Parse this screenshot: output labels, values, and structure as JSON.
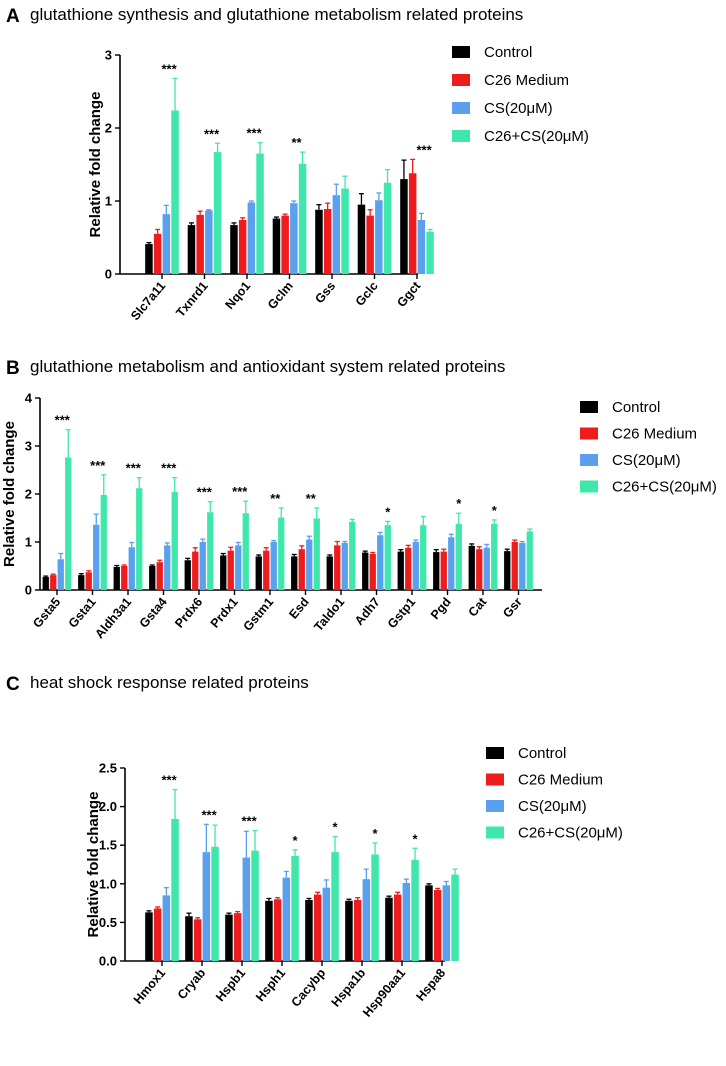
{
  "series_colors": [
    "#000000",
    "#ee1c1c",
    "#5aa0ee",
    "#3fe8aa"
  ],
  "chart_data": [
    {
      "type": "bar",
      "panel": "A",
      "title": "glutathione synthesis and glutathione metabolism related proteins",
      "ylabel": "Relative fold change",
      "xlabel": "",
      "ylim": [
        0,
        3
      ],
      "yticks": [
        "0",
        "1",
        "2",
        "3"
      ],
      "ytick_values": [
        0,
        1,
        2,
        3
      ],
      "categories": [
        "Slc7a11",
        "Txnrd1",
        "Nqo1",
        "Gclm",
        "Gss",
        "Gclc",
        "Ggct"
      ],
      "significance": [
        "***",
        "***",
        "***",
        "**",
        "",
        "",
        "***"
      ],
      "series": [
        {
          "name": "Control",
          "values": [
            0.41,
            0.67,
            0.67,
            0.76,
            0.88,
            0.95,
            1.3
          ],
          "errors": [
            0.02,
            0.03,
            0.03,
            0.02,
            0.07,
            0.15,
            0.26
          ]
        },
        {
          "name": "C26 Medium",
          "values": [
            0.55,
            0.81,
            0.74,
            0.8,
            0.89,
            0.8,
            1.38
          ],
          "errors": [
            0.06,
            0.05,
            0.03,
            0.02,
            0.08,
            0.08,
            0.19
          ]
        },
        {
          "name": "CS(20μM)",
          "values": [
            0.82,
            0.87,
            0.98,
            0.97,
            1.08,
            1.01,
            0.74
          ],
          "errors": [
            0.12,
            0.01,
            0.02,
            0.03,
            0.15,
            0.1,
            0.09
          ]
        },
        {
          "name": "C26+CS(20μM)",
          "values": [
            2.24,
            1.67,
            1.65,
            1.51,
            1.17,
            1.25,
            0.58
          ],
          "errors": [
            0.44,
            0.12,
            0.15,
            0.16,
            0.17,
            0.18,
            0.03
          ]
        }
      ]
    },
    {
      "type": "bar",
      "panel": "B",
      "title": "glutathione metabolism and antioxidant system related proteins",
      "ylabel": "Relative fold change",
      "xlabel": "",
      "ylim": [
        0,
        4
      ],
      "yticks": [
        "0",
        "1",
        "2",
        "3",
        "4"
      ],
      "ytick_values": [
        0,
        1,
        2,
        3,
        4
      ],
      "categories": [
        "Gsta5",
        "Gsta1",
        "Aldh3a1",
        "Gsta4",
        "Prdx6",
        "Prdx1",
        "Gstm1",
        "Esd",
        "Taldo1",
        "Adh7",
        "Gstp1",
        "Pgd",
        "Cat",
        "Gsr"
      ],
      "significance": [
        "***",
        "***",
        "***",
        "***",
        "***",
        "***",
        "**",
        "**",
        "",
        "*",
        "",
        "*",
        "*",
        ""
      ],
      "series": [
        {
          "name": "Control",
          "values": [
            0.27,
            0.31,
            0.48,
            0.5,
            0.62,
            0.72,
            0.7,
            0.7,
            0.7,
            0.78,
            0.8,
            0.79,
            0.92,
            0.81
          ],
          "errors": [
            0.02,
            0.03,
            0.03,
            0.02,
            0.04,
            0.04,
            0.03,
            0.04,
            0.03,
            0.03,
            0.04,
            0.05,
            0.04,
            0.04
          ]
        },
        {
          "name": "C26 Medium",
          "values": [
            0.31,
            0.37,
            0.5,
            0.58,
            0.8,
            0.82,
            0.82,
            0.85,
            0.93,
            0.75,
            0.88,
            0.8,
            0.85,
            1.0
          ],
          "errors": [
            0.02,
            0.03,
            0.02,
            0.04,
            0.08,
            0.07,
            0.06,
            0.07,
            0.08,
            0.03,
            0.05,
            0.05,
            0.05,
            0.04
          ]
        },
        {
          "name": "CS(20μM)",
          "values": [
            0.64,
            1.36,
            0.89,
            0.93,
            1.0,
            0.93,
            1.0,
            1.05,
            0.98,
            1.14,
            1.0,
            1.1,
            0.88,
            0.98
          ],
          "errors": [
            0.12,
            0.22,
            0.1,
            0.05,
            0.06,
            0.06,
            0.03,
            0.07,
            0.03,
            0.06,
            0.04,
            0.06,
            0.07,
            0.03
          ]
        },
        {
          "name": "C26+CS(20μM)",
          "values": [
            2.76,
            1.98,
            2.12,
            2.04,
            1.62,
            1.6,
            1.51,
            1.49,
            1.42,
            1.35,
            1.35,
            1.38,
            1.38,
            1.22
          ],
          "errors": [
            0.58,
            0.42,
            0.22,
            0.3,
            0.22,
            0.25,
            0.2,
            0.22,
            0.05,
            0.08,
            0.18,
            0.22,
            0.08,
            0.05
          ]
        }
      ]
    },
    {
      "type": "bar",
      "panel": "C",
      "title": "heat shock response related proteins",
      "ylabel": "Relative fold change",
      "xlabel": "",
      "ylim": [
        0,
        2.5
      ],
      "yticks": [
        "0.0",
        "0.5",
        "1.0",
        "1.5",
        "2.0",
        "2.5"
      ],
      "ytick_values": [
        0,
        0.5,
        1.0,
        1.5,
        2.0,
        2.5
      ],
      "categories": [
        "Hmox1",
        "Cryab",
        "Hspb1",
        "Hsph1",
        "Cacybp",
        "Hspa1b",
        "Hsp90aa1",
        "Hspa8"
      ],
      "significance": [
        "***",
        "***",
        "***",
        "*",
        "*",
        "*",
        "*",
        ""
      ],
      "series": [
        {
          "name": "Control",
          "values": [
            0.63,
            0.58,
            0.6,
            0.78,
            0.79,
            0.78,
            0.82,
            0.98
          ],
          "errors": [
            0.02,
            0.04,
            0.02,
            0.03,
            0.02,
            0.02,
            0.02,
            0.02
          ]
        },
        {
          "name": "C26 Medium",
          "values": [
            0.68,
            0.54,
            0.62,
            0.8,
            0.86,
            0.79,
            0.86,
            0.92
          ],
          "errors": [
            0.02,
            0.02,
            0.02,
            0.02,
            0.03,
            0.03,
            0.03,
            0.02
          ]
        },
        {
          "name": "CS(20μM)",
          "values": [
            0.85,
            1.41,
            1.34,
            1.08,
            0.95,
            1.06,
            1.01,
            0.98
          ],
          "errors": [
            0.1,
            0.36,
            0.34,
            0.08,
            0.1,
            0.13,
            0.05,
            0.05
          ]
        },
        {
          "name": "C26+CS(20μM)",
          "values": [
            1.84,
            1.48,
            1.43,
            1.36,
            1.41,
            1.38,
            1.31,
            1.12
          ],
          "errors": [
            0.38,
            0.28,
            0.26,
            0.08,
            0.2,
            0.15,
            0.15,
            0.07
          ]
        }
      ]
    }
  ]
}
